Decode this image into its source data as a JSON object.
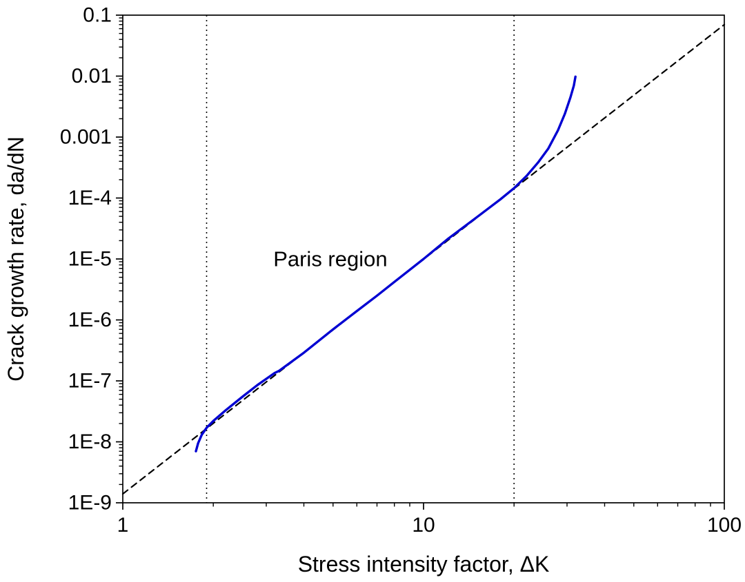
{
  "chart_data": {
    "type": "line",
    "title": "",
    "xlabel": "Stress intensity factor, ΔK",
    "ylabel": "Crack growth rate, da/dN",
    "x_scale": "log",
    "y_scale": "log",
    "xlim": [
      1,
      100
    ],
    "ylim": [
      1e-09,
      0.1
    ],
    "grid": false,
    "legend": "none",
    "x_ticks": [
      {
        "v": 1,
        "label": "1"
      },
      {
        "v": 10,
        "label": "10"
      },
      {
        "v": 100,
        "label": "100"
      }
    ],
    "y_ticks": [
      {
        "v": 0.1,
        "label": "0.1"
      },
      {
        "v": 0.01,
        "label": "0.01"
      },
      {
        "v": 0.001,
        "label": "0.001"
      },
      {
        "v": 0.0001,
        "label": "1E-4"
      },
      {
        "v": 1e-05,
        "label": "1E-5"
      },
      {
        "v": 1e-06,
        "label": "1E-6"
      },
      {
        "v": 1e-07,
        "label": "1E-7"
      },
      {
        "v": 1e-08,
        "label": "1E-8"
      },
      {
        "v": 1e-09,
        "label": "1E-9"
      }
    ],
    "annotation": {
      "text": "Paris region",
      "x": 4.9,
      "y": 1e-05
    },
    "reference_lines": [
      {
        "name": "threshold-region-boundary",
        "x": 1.9,
        "style": "dotted"
      },
      {
        "name": "fast-fracture-boundary",
        "x": 20,
        "style": "dotted"
      }
    ],
    "series": [
      {
        "id": "paris-law-fit",
        "name": "Paris law extrapolation (dashed)",
        "color": "#000000",
        "dash": "9 7",
        "width": 2.2,
        "points": [
          [
            1,
            1.4e-09
          ],
          [
            100,
            0.07
          ]
        ]
      },
      {
        "id": "crack-growth-curve",
        "name": "Fatigue crack growth curve",
        "color": "#0000d2",
        "dash": "",
        "width": 3.4,
        "points": [
          [
            1.75,
            7e-09
          ],
          [
            1.78,
            9.5e-09
          ],
          [
            1.83,
            1.3e-08
          ],
          [
            1.9,
            1.7e-08
          ],
          [
            2.0,
            2.2e-08
          ],
          [
            2.2,
            3.3e-08
          ],
          [
            2.5,
            5.5e-08
          ],
          [
            2.8,
            8.5e-08
          ],
          [
            3.2,
            1.35e-07
          ],
          [
            3.3,
            1.45e-07
          ],
          [
            4.0,
            2.9e-07
          ],
          [
            5.0,
            7e-07
          ],
          [
            6.0,
            1.4e-06
          ],
          [
            7.0,
            2.5e-06
          ],
          [
            8.0,
            4.2e-06
          ],
          [
            10.0,
            1e-05
          ],
          [
            12.0,
            2.1e-05
          ],
          [
            15.0,
            4.8e-05
          ],
          [
            18.0,
            9.5e-05
          ],
          [
            20.0,
            0.000145
          ],
          [
            22.0,
            0.00023
          ],
          [
            24.0,
            0.00038
          ],
          [
            26.0,
            0.00065
          ],
          [
            28.0,
            0.0013
          ],
          [
            29.5,
            0.0024
          ],
          [
            30.8,
            0.0045
          ],
          [
            31.6,
            0.007
          ],
          [
            32.0,
            0.0098
          ]
        ]
      }
    ],
    "colors": {
      "curve": "#0000d2",
      "axes": "#000000",
      "background": "#ffffff"
    }
  }
}
